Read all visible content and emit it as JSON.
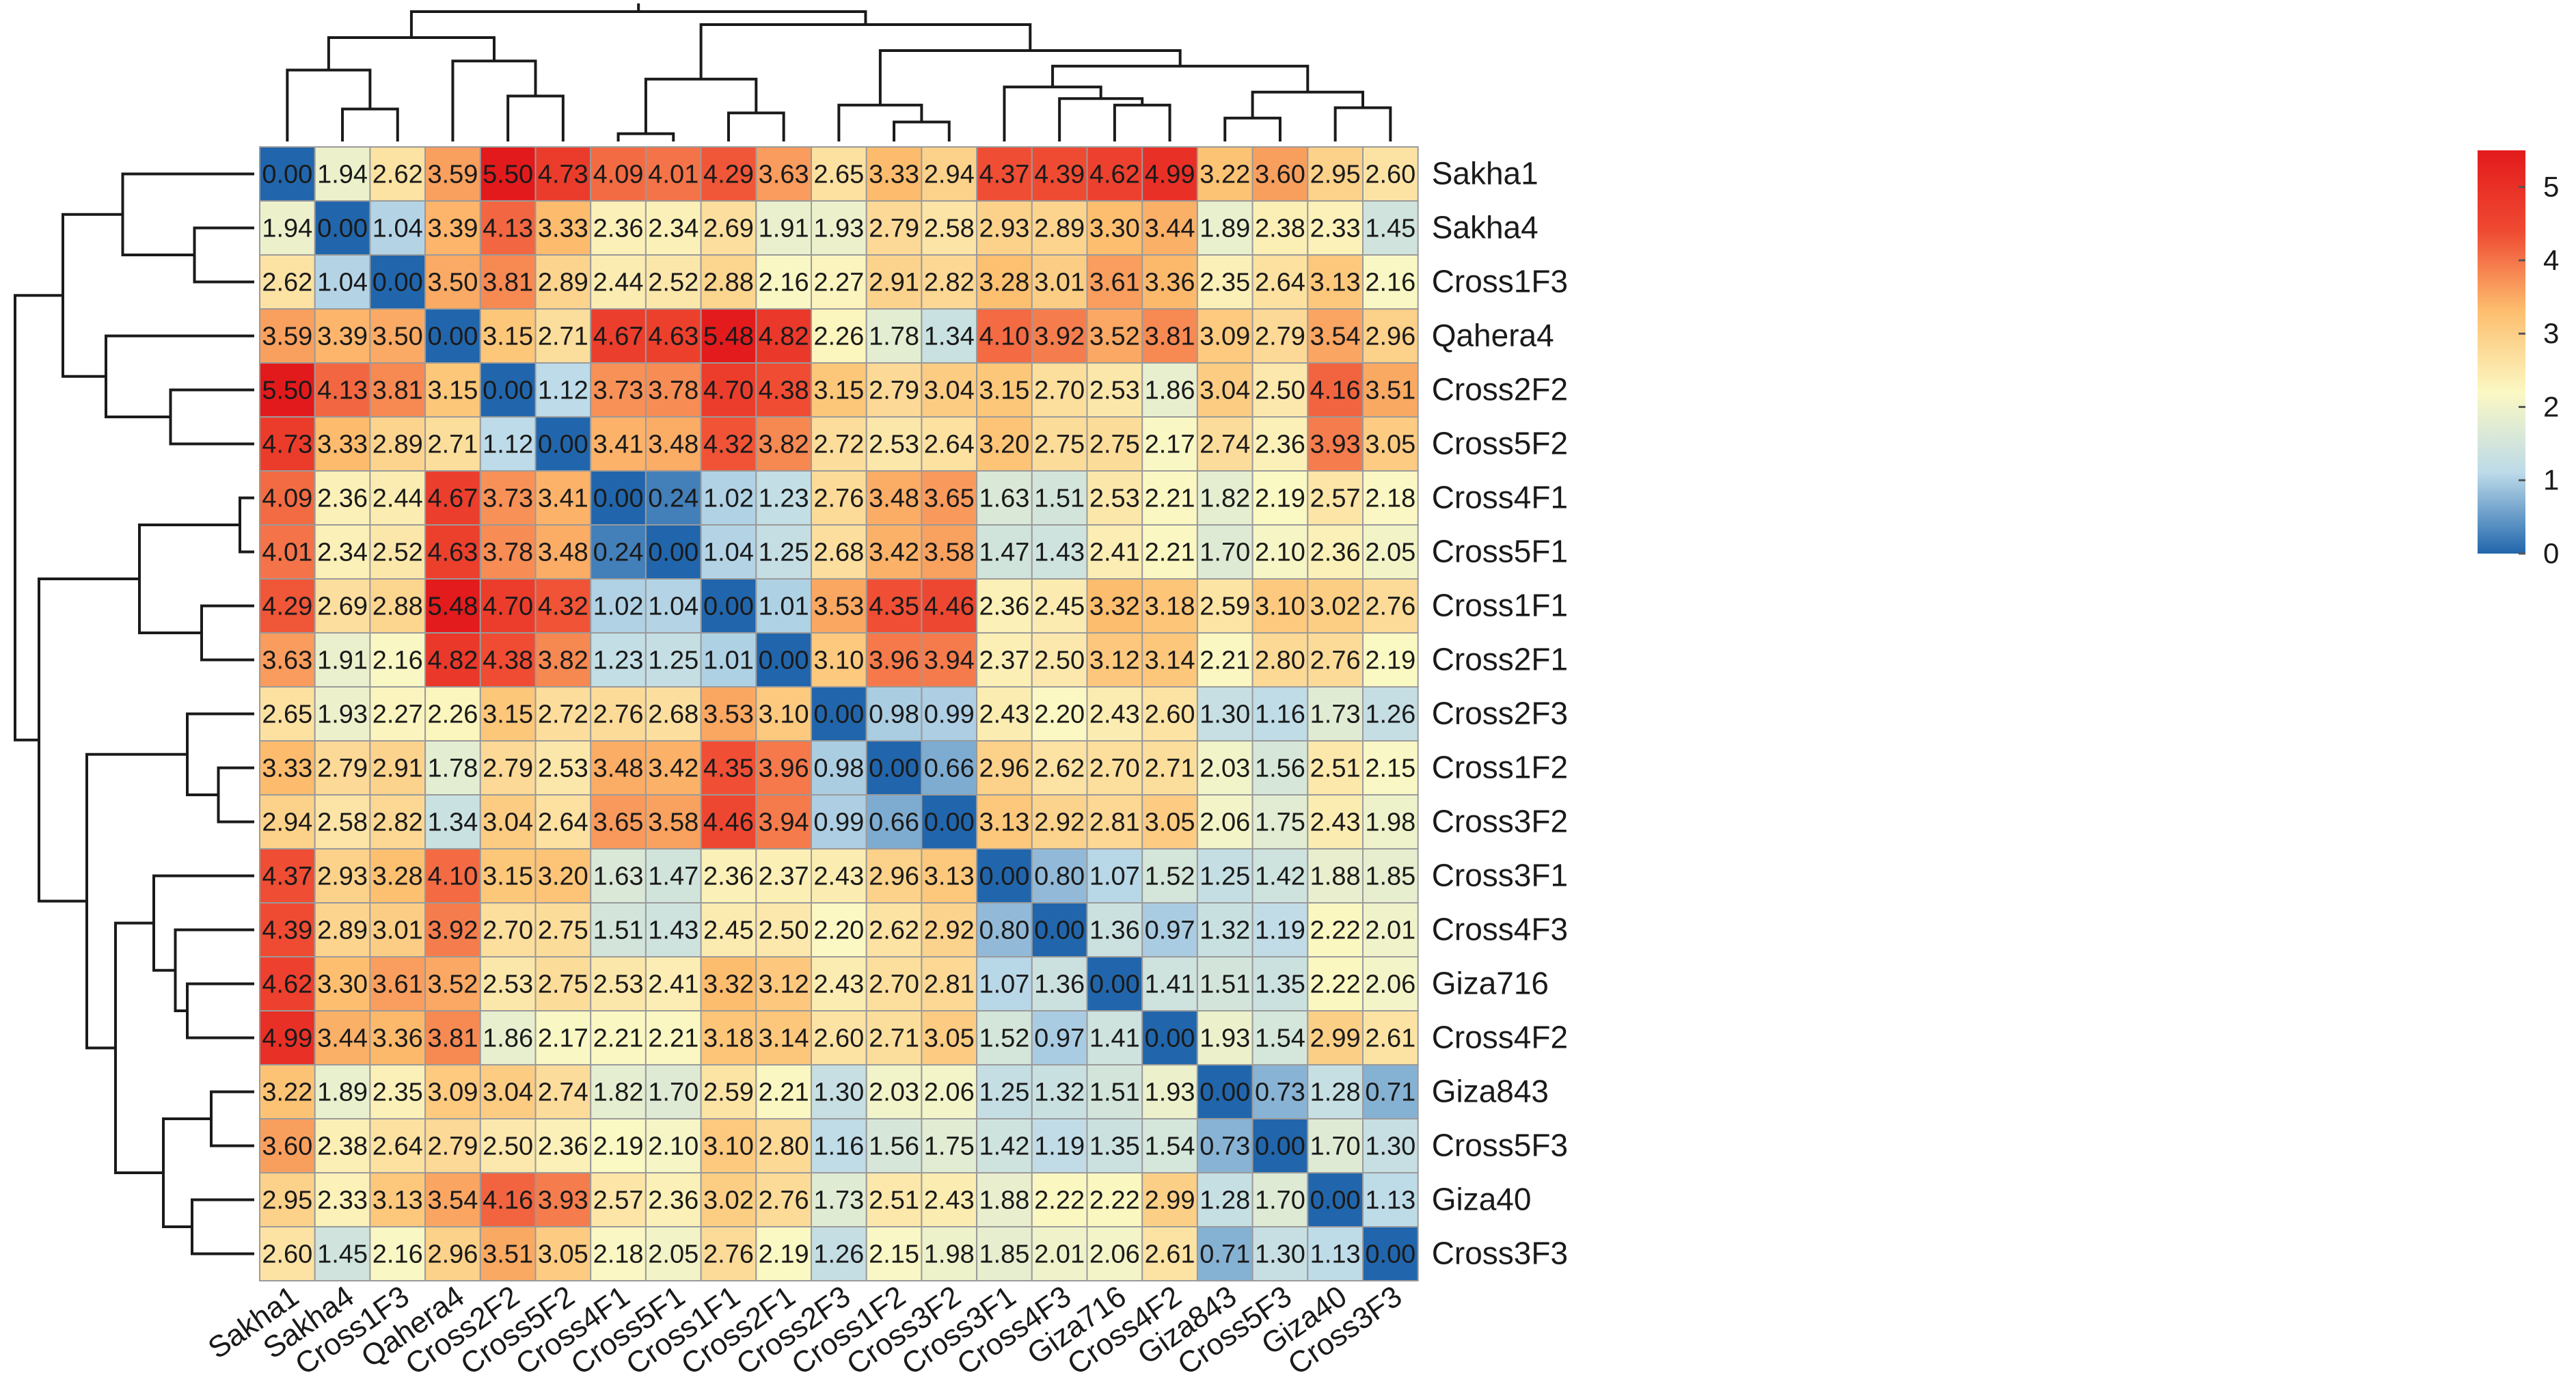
{
  "chart_data": {
    "type": "heatmap",
    "title": "",
    "xlabel": "",
    "ylabel": "",
    "columns": [
      "Sakha1",
      "Sakha4",
      "Cross1F3",
      "Qahera4",
      "Cross2F2",
      "Cross5F2",
      "Cross4F1",
      "Cross5F1",
      "Cross1F1",
      "Cross2F1",
      "Cross2F3",
      "Cross1F2",
      "Cross3F2",
      "Cross3F1",
      "Cross4F3",
      "Giza716",
      "Cross4F2",
      "Giza843",
      "Cross5F3",
      "Giza40",
      "Cross3F3"
    ],
    "rows": [
      "Sakha1",
      "Sakha4",
      "Cross1F3",
      "Qahera4",
      "Cross2F2",
      "Cross5F2",
      "Cross4F1",
      "Cross5F1",
      "Cross1F1",
      "Cross2F1",
      "Cross2F3",
      "Cross1F2",
      "Cross3F2",
      "Cross3F1",
      "Cross4F3",
      "Giza716",
      "Cross4F2",
      "Giza843",
      "Cross5F3",
      "Giza40",
      "Cross3F3"
    ],
    "values": [
      [
        0.0,
        1.94,
        2.62,
        3.59,
        5.5,
        4.73,
        4.09,
        4.01,
        4.29,
        3.63,
        2.65,
        3.33,
        2.94,
        4.37,
        4.39,
        4.62,
        4.99,
        3.22,
        3.6,
        2.95,
        2.6
      ],
      [
        1.94,
        0.0,
        1.04,
        3.39,
        4.13,
        3.33,
        2.36,
        2.34,
        2.69,
        1.91,
        1.93,
        2.79,
        2.58,
        2.93,
        2.89,
        3.3,
        3.44,
        1.89,
        2.38,
        2.33,
        1.45
      ],
      [
        2.62,
        1.04,
        0.0,
        3.5,
        3.81,
        2.89,
        2.44,
        2.52,
        2.88,
        2.16,
        2.27,
        2.91,
        2.82,
        3.28,
        3.01,
        3.61,
        3.36,
        2.35,
        2.64,
        3.13,
        2.16
      ],
      [
        3.59,
        3.39,
        3.5,
        0.0,
        3.15,
        2.71,
        4.67,
        4.63,
        5.48,
        4.82,
        2.26,
        1.78,
        1.34,
        4.1,
        3.92,
        3.52,
        3.81,
        3.09,
        2.79,
        3.54,
        2.96
      ],
      [
        5.5,
        4.13,
        3.81,
        3.15,
        0.0,
        1.12,
        3.73,
        3.78,
        4.7,
        4.38,
        3.15,
        2.79,
        3.04,
        3.15,
        2.7,
        2.53,
        1.86,
        3.04,
        2.5,
        4.16,
        3.51
      ],
      [
        4.73,
        3.33,
        2.89,
        2.71,
        1.12,
        0.0,
        3.41,
        3.48,
        4.32,
        3.82,
        2.72,
        2.53,
        2.64,
        3.2,
        2.75,
        2.75,
        2.17,
        2.74,
        2.36,
        3.93,
        3.05
      ],
      [
        4.09,
        2.36,
        2.44,
        4.67,
        3.73,
        3.41,
        0.0,
        0.24,
        1.02,
        1.23,
        2.76,
        3.48,
        3.65,
        1.63,
        1.51,
        2.53,
        2.21,
        1.82,
        2.19,
        2.57,
        2.18
      ],
      [
        4.01,
        2.34,
        2.52,
        4.63,
        3.78,
        3.48,
        0.24,
        0.0,
        1.04,
        1.25,
        2.68,
        3.42,
        3.58,
        1.47,
        1.43,
        2.41,
        2.21,
        1.7,
        2.1,
        2.36,
        2.05
      ],
      [
        4.29,
        2.69,
        2.88,
        5.48,
        4.7,
        4.32,
        1.02,
        1.04,
        0.0,
        1.01,
        3.53,
        4.35,
        4.46,
        2.36,
        2.45,
        3.32,
        3.18,
        2.59,
        3.1,
        3.02,
        2.76
      ],
      [
        3.63,
        1.91,
        2.16,
        4.82,
        4.38,
        3.82,
        1.23,
        1.25,
        1.01,
        0.0,
        3.1,
        3.96,
        3.94,
        2.37,
        2.5,
        3.12,
        3.14,
        2.21,
        2.8,
        2.76,
        2.19
      ],
      [
        2.65,
        1.93,
        2.27,
        2.26,
        3.15,
        2.72,
        2.76,
        2.68,
        3.53,
        3.1,
        0.0,
        0.98,
        0.99,
        2.43,
        2.2,
        2.43,
        2.6,
        1.3,
        1.16,
        1.73,
        1.26
      ],
      [
        3.33,
        2.79,
        2.91,
        1.78,
        2.79,
        2.53,
        3.48,
        3.42,
        4.35,
        3.96,
        0.98,
        0.0,
        0.66,
        2.96,
        2.62,
        2.7,
        2.71,
        2.03,
        1.56,
        2.51,
        2.15
      ],
      [
        2.94,
        2.58,
        2.82,
        1.34,
        3.04,
        2.64,
        3.65,
        3.58,
        4.46,
        3.94,
        0.99,
        0.66,
        0.0,
        3.13,
        2.92,
        2.81,
        3.05,
        2.06,
        1.75,
        2.43,
        1.98
      ],
      [
        4.37,
        2.93,
        3.28,
        4.1,
        3.15,
        3.2,
        1.63,
        1.47,
        2.36,
        2.37,
        2.43,
        2.96,
        3.13,
        0.0,
        0.8,
        1.07,
        1.52,
        1.25,
        1.42,
        1.88,
        1.85
      ],
      [
        4.39,
        2.89,
        3.01,
        3.92,
        2.7,
        2.75,
        1.51,
        1.43,
        2.45,
        2.5,
        2.2,
        2.62,
        2.92,
        0.8,
        0.0,
        1.36,
        0.97,
        1.32,
        1.19,
        2.22,
        2.01
      ],
      [
        4.62,
        3.3,
        3.61,
        3.52,
        2.53,
        2.75,
        2.53,
        2.41,
        3.32,
        3.12,
        2.43,
        2.7,
        2.81,
        1.07,
        1.36,
        0.0,
        1.41,
        1.51,
        1.35,
        2.22,
        2.06
      ],
      [
        4.99,
        3.44,
        3.36,
        3.81,
        1.86,
        2.17,
        2.21,
        2.21,
        3.18,
        3.14,
        2.6,
        2.71,
        3.05,
        1.52,
        0.97,
        1.41,
        0.0,
        1.93,
        1.54,
        2.99,
        2.61
      ],
      [
        3.22,
        1.89,
        2.35,
        3.09,
        3.04,
        2.74,
        1.82,
        1.7,
        2.59,
        2.21,
        1.3,
        2.03,
        2.06,
        1.25,
        1.32,
        1.51,
        1.93,
        0.0,
        0.73,
        1.28,
        0.71
      ],
      [
        3.6,
        2.38,
        2.64,
        2.79,
        2.5,
        2.36,
        2.19,
        2.1,
        3.1,
        2.8,
        1.16,
        1.56,
        1.75,
        1.42,
        1.19,
        1.35,
        1.54,
        0.73,
        0.0,
        1.7,
        1.3
      ],
      [
        2.95,
        2.33,
        3.13,
        3.54,
        4.16,
        3.93,
        2.57,
        2.36,
        3.02,
        2.76,
        1.73,
        2.51,
        2.43,
        1.88,
        2.22,
        2.22,
        2.99,
        1.28,
        1.7,
        0.0,
        1.13
      ],
      [
        2.6,
        1.45,
        2.16,
        2.96,
        3.51,
        3.05,
        2.18,
        2.05,
        2.76,
        2.19,
        1.26,
        2.15,
        1.98,
        1.85,
        2.01,
        2.06,
        2.61,
        0.71,
        1.3,
        1.13,
        0.0
      ]
    ],
    "value_range": [
      0,
      5.5
    ],
    "colorbar_ticks": [
      "0",
      "1",
      "2",
      "3",
      "4",
      "5"
    ],
    "color_scale": [
      "#2166ac",
      "#bcdae9",
      "#fbf8c3",
      "#fdbf6f",
      "#ef4a32",
      "#e31a1c"
    ],
    "grid": true,
    "legend_placement": "right",
    "dendrograms": [
      "top",
      "left"
    ]
  }
}
